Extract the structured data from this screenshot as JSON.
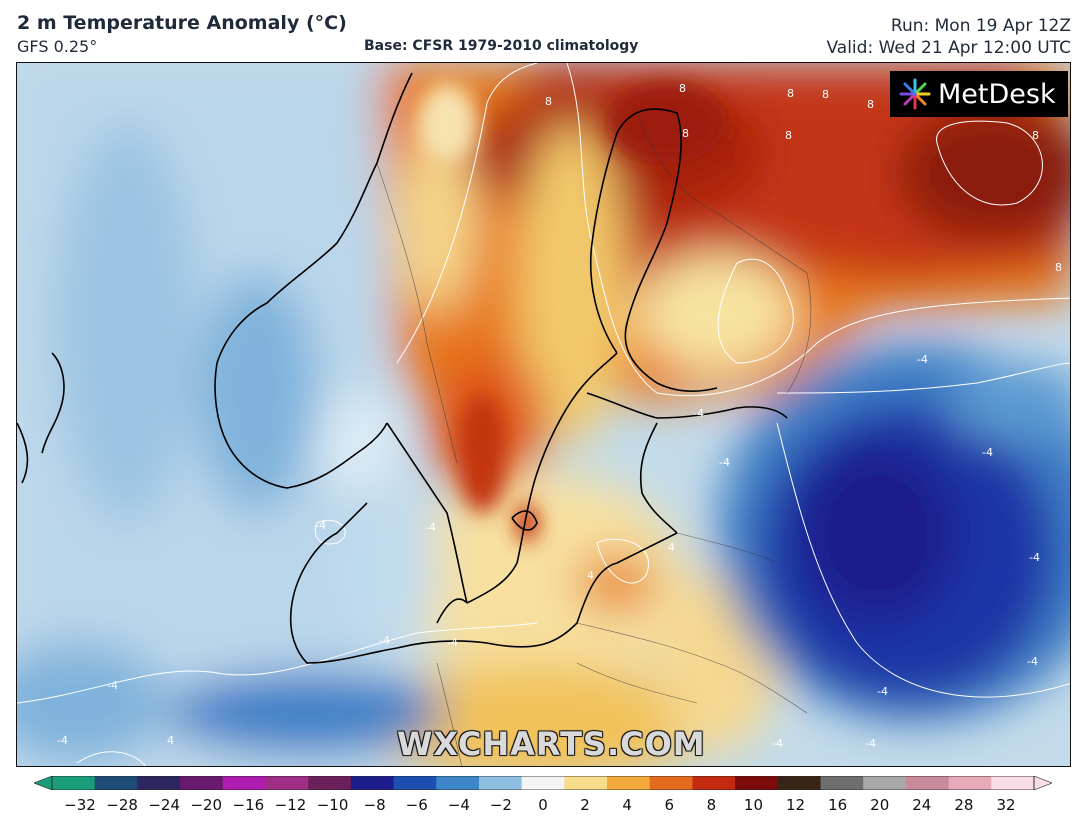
{
  "header": {
    "title": "2 m Temperature Anomaly (°C)",
    "model": "GFS 0.25°",
    "base": "Base: CFSR 1979-2010 climatology",
    "run": "Run: Mon 19 Apr 12Z",
    "valid": "Valid: Wed 21 Apr 12:00 UTC"
  },
  "logo": {
    "text": "MetDesk",
    "icon": "metdesk-starburst-icon"
  },
  "watermark": "WXCHARTS.COM",
  "contour_labels": [
    "8",
    "8",
    "8",
    "8",
    "8",
    "8",
    "8",
    "8",
    "8",
    "-4",
    "-4",
    "-4",
    "-4",
    "-4",
    "-4",
    "-4",
    "-4",
    "-4",
    "-4",
    "-4",
    "-4",
    "-4",
    "-4",
    "-4",
    "4",
    "4",
    "4"
  ],
  "colorbar": {
    "ticks": [
      "−32",
      "−28",
      "−24",
      "−20",
      "−16",
      "−12",
      "−10",
      "−8",
      "−6",
      "−4",
      "−2",
      "0",
      "2",
      "4",
      "6",
      "8",
      "10",
      "12",
      "16",
      "20",
      "24",
      "28",
      "32"
    ],
    "colors": [
      "#1a9e7a",
      "#1e4a78",
      "#2b2560",
      "#6a1a6e",
      "#b01cb0",
      "#a02d86",
      "#6d1f5c",
      "#1c1c8c",
      "#1c4fb0",
      "#3d86c8",
      "#8fbfe0",
      "#f4f4f4",
      "#f7dd8a",
      "#f2a93a",
      "#e66a1e",
      "#c42a10",
      "#7d0a0a",
      "#3a2418",
      "#6e6e6e",
      "#a8a8a8",
      "#c98a9a",
      "#e6aab8",
      "#f8dde6"
    ]
  }
}
